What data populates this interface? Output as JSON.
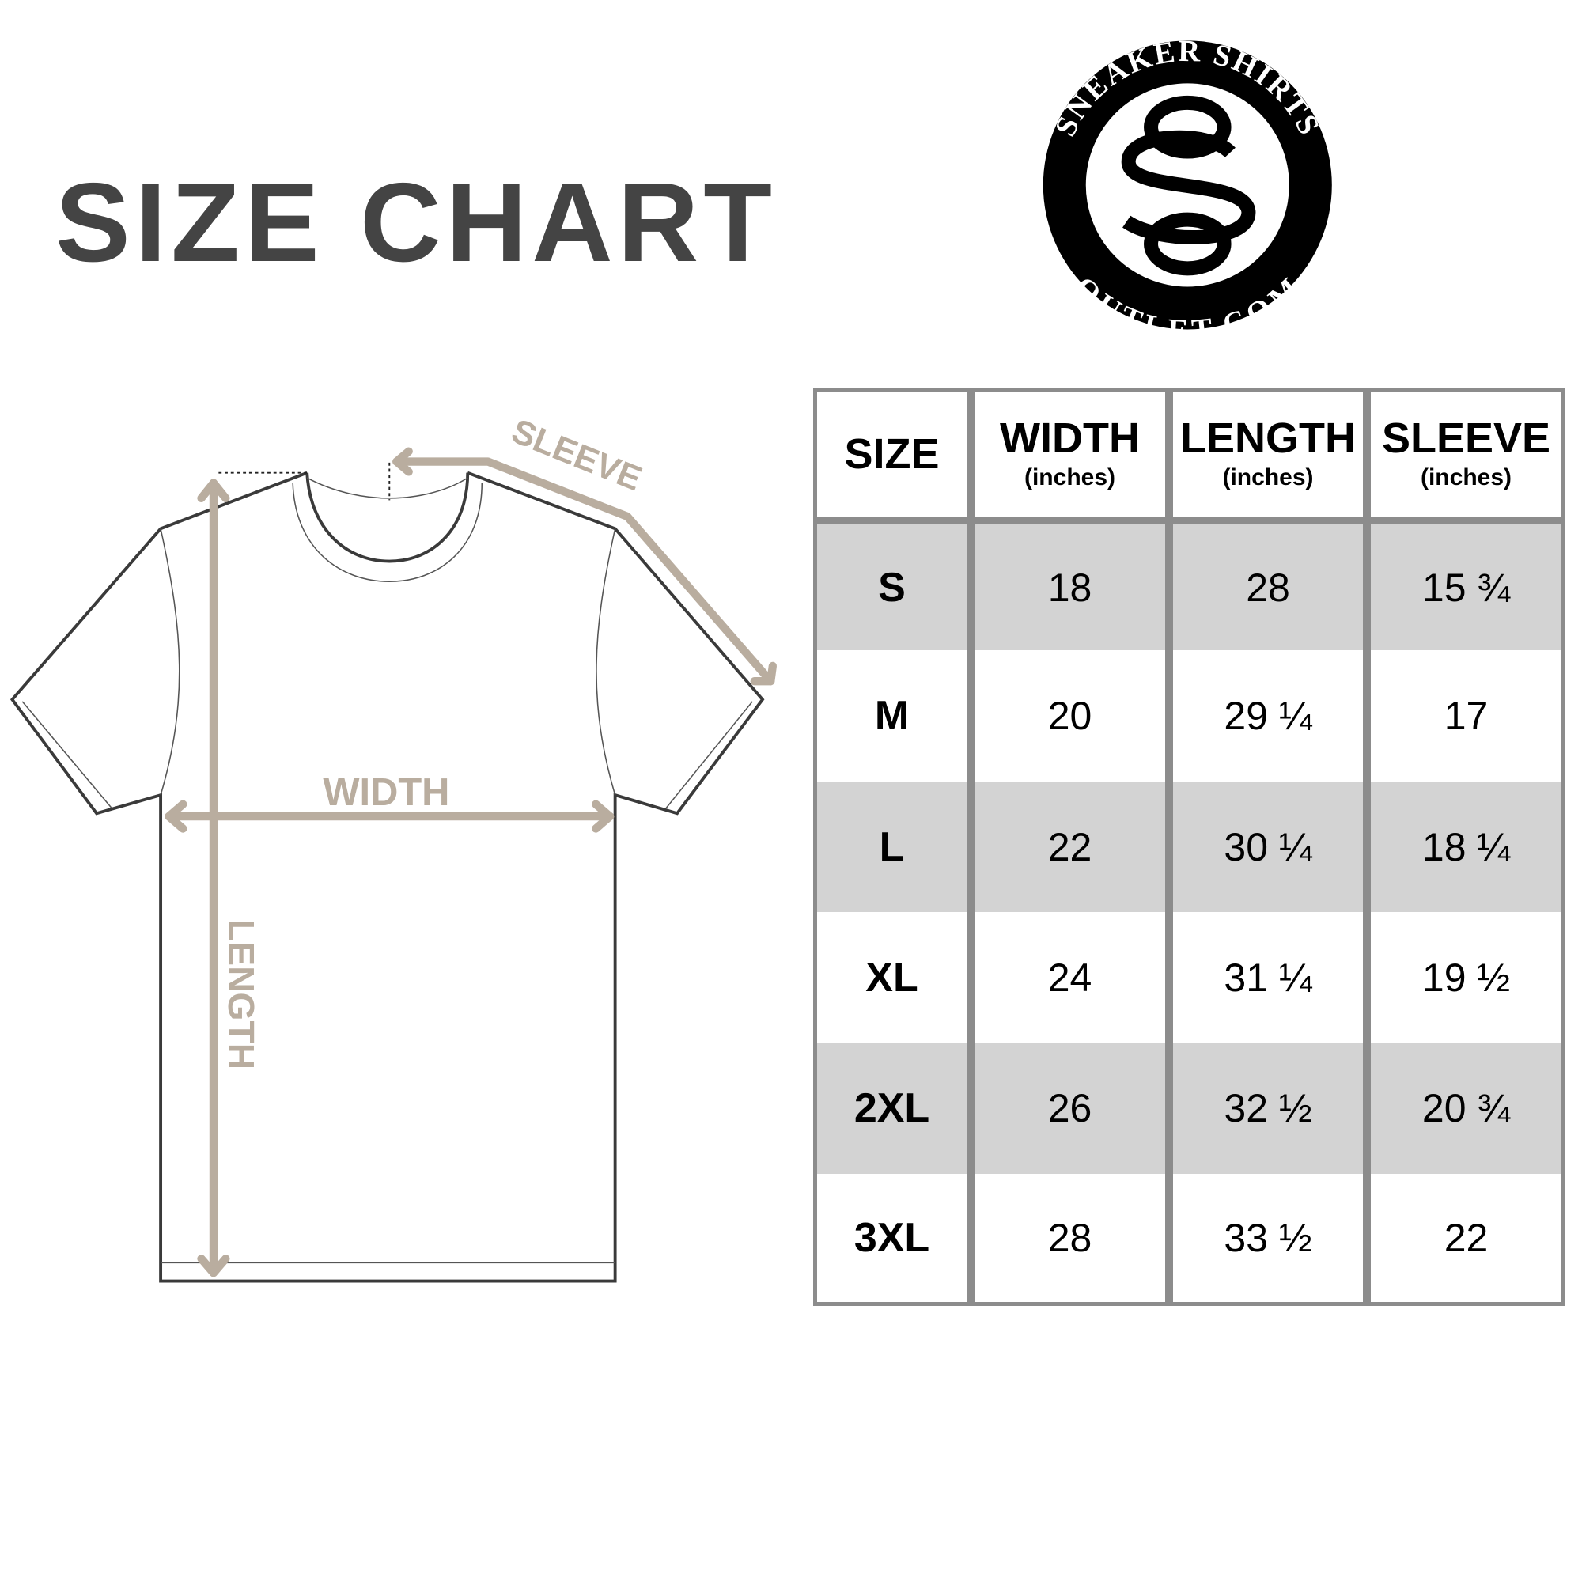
{
  "title": "SIZE CHART",
  "logo": {
    "top_text": "SNEAKER SHIRTS",
    "bottom_text": "OUTLET.COM",
    "monogram": "SO"
  },
  "diagram": {
    "sleeve_label": "SLEEVE",
    "width_label": "WIDTH",
    "length_label": "LENGTH",
    "arrow_color": "#b9ad9f"
  },
  "table": {
    "headers": [
      {
        "label": "SIZE",
        "unit": ""
      },
      {
        "label": "WIDTH",
        "unit": "(inches)"
      },
      {
        "label": "LENGTH",
        "unit": "(inches)"
      },
      {
        "label": "SLEEVE",
        "unit": "(inches)"
      }
    ],
    "rows": [
      [
        "S",
        "18",
        "28",
        "15 ¾"
      ],
      [
        "M",
        "20",
        "29 ¼",
        "17"
      ],
      [
        "L",
        "22",
        "30 ¼",
        "18 ¼"
      ],
      [
        "XL",
        "24",
        "31 ¼",
        "19 ½"
      ],
      [
        "2XL",
        "26",
        "32 ½",
        "20 ¾"
      ],
      [
        "3XL",
        "28",
        "33 ½",
        "22"
      ]
    ],
    "stripe_color": "#d3d3d3",
    "border_color": "#8c8c8c"
  }
}
